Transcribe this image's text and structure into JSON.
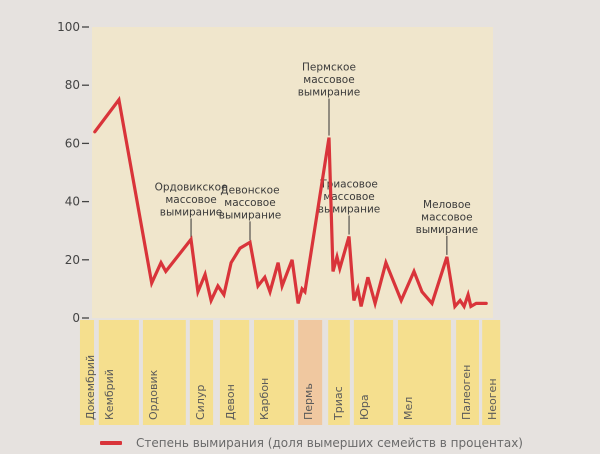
{
  "chart_data": {
    "type": "line",
    "title": "",
    "xlabel": "",
    "ylabel": "",
    "ylim": [
      0,
      100
    ],
    "yticks": [
      0,
      20,
      40,
      60,
      80,
      100
    ],
    "xlim": [
      0,
      100
    ],
    "series": [
      {
        "name": "Степень вымирания (доля вымерших семейств в процентах)",
        "color": "#d9343a",
        "x": [
          0.7,
          6.7,
          14.9,
          17.2,
          18.4,
          24.7,
          26.4,
          28.2,
          29.7,
          31.4,
          32.9,
          34.7,
          36.9,
          39.4,
          41.4,
          43.1,
          44.4,
          46.4,
          47.4,
          49.9,
          51.4,
          52.4,
          53.1,
          59.1,
          60.1,
          61.1,
          61.8,
          64.1,
          65.3,
          66.3,
          67.1,
          68.8,
          70.6,
          73.3,
          77.1,
          80.3,
          82.3,
          84.8,
          88.5,
          90.5,
          91.8,
          92.8,
          93.8,
          94.5,
          95.8,
          98.3
        ],
        "values": [
          64,
          75,
          12,
          19,
          16,
          27,
          9,
          15,
          6,
          11,
          8,
          19,
          24,
          26,
          11,
          14,
          9,
          19,
          11,
          20,
          5,
          10,
          9,
          62,
          16,
          21,
          17,
          28,
          6,
          10,
          4,
          14,
          5,
          19,
          6,
          16,
          9,
          5,
          21,
          4,
          6,
          4,
          8,
          4,
          5,
          5
        ]
      }
    ],
    "annotations": [
      {
        "lines": [
          "Ордовикское",
          "массовое",
          "вымирание"
        ],
        "x": 24.7,
        "y": 27
      },
      {
        "lines": [
          "Девонское",
          "массовое",
          "вымирание"
        ],
        "x": 39.4,
        "y": 26
      },
      {
        "lines": [
          "Пермское",
          "массовое",
          "вымирание"
        ],
        "x": 59.1,
        "y": 62
      },
      {
        "lines": [
          "Триасовое",
          "массовое",
          "вымирание"
        ],
        "x": 64.1,
        "y": 28
      },
      {
        "lines": [
          "Меловое",
          "массовое",
          "вымирание"
        ],
        "x": 88.5,
        "y": 21
      }
    ],
    "periods": [
      {
        "label": "Докембрий",
        "start": -3.0,
        "end": 0.5,
        "color": "#f5df8e"
      },
      {
        "label": "Кембрий",
        "start": 1.7,
        "end": 11.7,
        "color": "#f5df8e"
      },
      {
        "label": "Ордовик",
        "start": 12.7,
        "end": 23.4,
        "color": "#f5df8e"
      },
      {
        "label": "Силур",
        "start": 24.4,
        "end": 30.2,
        "color": "#f5df8e"
      },
      {
        "label": "Девон",
        "start": 31.9,
        "end": 39.2,
        "color": "#f5df8e"
      },
      {
        "label": "Карбон",
        "start": 40.4,
        "end": 50.4,
        "color": "#f5df8e"
      },
      {
        "label": "Пермь",
        "start": 51.4,
        "end": 57.4,
        "color": "#f0c8a0"
      },
      {
        "label": "Триас",
        "start": 58.9,
        "end": 64.3,
        "color": "#f5df8e"
      },
      {
        "label": "Юра",
        "start": 65.3,
        "end": 75.1,
        "color": "#f5df8e"
      },
      {
        "label": "Мел",
        "start": 76.3,
        "end": 89.5,
        "color": "#f5df8e"
      },
      {
        "label": "Палеоген",
        "start": 90.8,
        "end": 96.5,
        "color": "#f5df8e"
      },
      {
        "label": "Неоген",
        "start": 97.3,
        "end": 101.8,
        "color": "#f5df8e"
      }
    ],
    "legend": {
      "position": "bottom-left",
      "label": "Степень вымирания (доля вымерших семейств в процентах)"
    },
    "grid": false
  },
  "colors": {
    "page_bg": "#e6e2df",
    "plot_bg": "#f0e6cc",
    "line": "#d9343a"
  }
}
